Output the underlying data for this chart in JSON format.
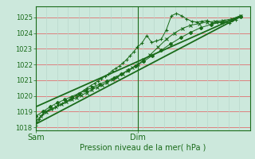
{
  "background_color": "#cce8dc",
  "grid_color_h": "#e07070",
  "grid_color_v": "#b8d8cc",
  "line_color": "#1a6b1a",
  "marker_color": "#1a6b1a",
  "title": "Pression niveau de la mer( hPa )",
  "xlabel_sam": "Sam",
  "xlabel_dim": "Dim",
  "ylim": [
    1017.8,
    1025.7
  ],
  "yticks": [
    1018,
    1019,
    1020,
    1021,
    1022,
    1023,
    1024,
    1025
  ],
  "xlim": [
    0.0,
    1.05
  ],
  "vline_x": 0.5,
  "curve1_x": [
    0.0,
    0.018,
    0.032,
    0.048,
    0.065,
    0.08,
    0.095,
    0.112,
    0.13,
    0.148,
    0.165,
    0.182,
    0.2,
    0.218,
    0.235,
    0.252,
    0.27,
    0.288,
    0.305,
    0.322,
    0.34,
    0.358,
    0.375,
    0.392,
    0.41,
    0.428,
    0.445,
    0.462,
    0.48,
    0.498,
    0.52,
    0.545,
    0.568,
    0.592,
    0.615,
    0.64,
    0.665,
    0.69,
    0.715,
    0.74,
    0.765,
    0.79,
    0.815,
    0.84,
    0.865,
    0.89,
    0.92,
    0.95,
    0.98,
    1.005
  ],
  "curve1_y": [
    1018.1,
    1018.5,
    1018.8,
    1019.0,
    1019.1,
    1019.15,
    1019.25,
    1019.4,
    1019.5,
    1019.65,
    1019.75,
    1019.9,
    1020.05,
    1020.2,
    1020.35,
    1020.5,
    1020.65,
    1020.8,
    1020.95,
    1021.1,
    1021.25,
    1021.4,
    1021.6,
    1021.75,
    1021.9,
    1022.1,
    1022.3,
    1022.55,
    1022.8,
    1023.1,
    1023.35,
    1023.85,
    1023.4,
    1023.5,
    1023.6,
    1024.2,
    1025.1,
    1025.25,
    1025.1,
    1024.9,
    1024.75,
    1024.7,
    1024.75,
    1024.8,
    1024.65,
    1024.7,
    1024.7,
    1024.65,
    1024.85,
    1025.1
  ],
  "curve2_x": [
    0.0,
    0.025,
    0.05,
    0.075,
    0.1,
    0.125,
    0.15,
    0.175,
    0.2,
    0.225,
    0.25,
    0.275,
    0.3,
    0.325,
    0.35,
    0.375,
    0.4,
    0.425,
    0.45,
    0.475,
    0.5,
    0.53,
    0.56,
    0.6,
    0.64,
    0.68,
    0.72,
    0.76,
    0.8,
    0.84,
    0.88,
    0.92,
    0.96,
    1.005
  ],
  "curve2_y": [
    1018.4,
    1018.7,
    1018.95,
    1019.15,
    1019.3,
    1019.45,
    1019.6,
    1019.75,
    1019.9,
    1020.05,
    1020.2,
    1020.4,
    1020.55,
    1020.7,
    1020.85,
    1021.05,
    1021.2,
    1021.4,
    1021.6,
    1021.8,
    1022.0,
    1022.3,
    1022.6,
    1023.1,
    1023.6,
    1024.0,
    1024.3,
    1024.5,
    1024.6,
    1024.7,
    1024.75,
    1024.8,
    1024.9,
    1025.1
  ],
  "curve3_x": [
    0.0,
    0.035,
    0.07,
    0.105,
    0.14,
    0.175,
    0.21,
    0.245,
    0.28,
    0.315,
    0.35,
    0.385,
    0.42,
    0.455,
    0.49,
    0.53,
    0.57,
    0.615,
    0.66,
    0.71,
    0.76,
    0.81,
    0.86,
    0.91,
    0.96,
    1.005
  ],
  "curve3_y": [
    1018.7,
    1019.0,
    1019.3,
    1019.55,
    1019.75,
    1019.95,
    1020.15,
    1020.35,
    1020.55,
    1020.75,
    1020.95,
    1021.15,
    1021.4,
    1021.65,
    1021.9,
    1022.2,
    1022.55,
    1022.9,
    1023.3,
    1023.7,
    1024.05,
    1024.35,
    1024.55,
    1024.7,
    1024.85,
    1025.05
  ],
  "trend1_x": [
    0.0,
    1.005
  ],
  "trend1_y": [
    1018.2,
    1025.05
  ],
  "trend2_x": [
    0.0,
    1.005
  ],
  "trend2_y": [
    1019.3,
    1025.1
  ]
}
